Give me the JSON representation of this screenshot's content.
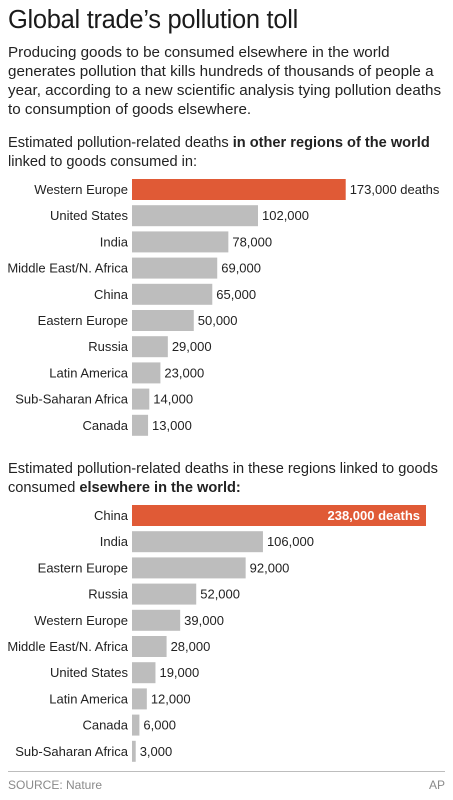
{
  "title": "Global trade’s pollution toll",
  "intro": "Producing goods to be consumed elsewhere in the world generates pollution that kills hundreds of thousands of people a year, according to a new scientific analysis tying pollution deaths to consumption of goods elsewhere.",
  "section1": {
    "prefix": "Estimated pollution-related deaths ",
    "bold": "in other regions of the world",
    "suffix": " linked to goods consumed in:"
  },
  "section2": {
    "prefix": "Estimated pollution-related deaths in these regions linked to goods consumed ",
    "bold": "elsewhere in the world:",
    "suffix": ""
  },
  "source": "SOURCE: Nature",
  "credit": "AP",
  "colors": {
    "highlight": "#e05a36",
    "bar": "#bdbdbd"
  },
  "chart_data": [
    {
      "type": "bar",
      "orientation": "horizontal",
      "title": "",
      "categories": [
        "Western Europe",
        "United States",
        "India",
        "Middle East/N. Africa",
        "China",
        "Eastern Europe",
        "Russia",
        "Latin America",
        "Sub-Saharan Africa",
        "Canada"
      ],
      "values": [
        173000,
        102000,
        78000,
        69000,
        65000,
        50000,
        29000,
        23000,
        14000,
        13000
      ],
      "value_labels": [
        "173,000 deaths",
        "102,000",
        "78,000",
        "69,000",
        "65,000",
        "50,000",
        "29,000",
        "23,000",
        "14,000",
        "13,000"
      ],
      "highlight_index": 0,
      "label_inside_highlight": false,
      "xlim": [
        0,
        238000
      ]
    },
    {
      "type": "bar",
      "orientation": "horizontal",
      "title": "",
      "categories": [
        "China",
        "India",
        "Eastern Europe",
        "Russia",
        "Western Europe",
        "Middle East/N. Africa",
        "United States",
        "Latin America",
        "Canada",
        "Sub-Saharan Africa"
      ],
      "values": [
        238000,
        106000,
        92000,
        52000,
        39000,
        28000,
        19000,
        12000,
        6000,
        3000
      ],
      "value_labels": [
        "238,000 deaths",
        "106,000",
        "92,000",
        "52,000",
        "39,000",
        "28,000",
        "19,000",
        "12,000",
        "6,000",
        "3,000"
      ],
      "highlight_index": 0,
      "label_inside_highlight": true,
      "xlim": [
        0,
        238000
      ]
    }
  ]
}
